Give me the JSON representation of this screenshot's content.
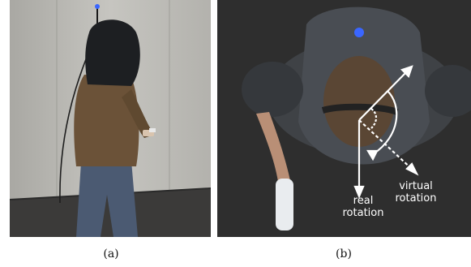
{
  "captions": {
    "a": "(a)",
    "b": "(b)"
  },
  "annotations": {
    "real": [
      "real",
      "rotation"
    ],
    "virtual": [
      "virtual",
      "rotation"
    ]
  },
  "colors": {
    "wall": "#b9b8b3",
    "floor_dark": "#3b3a39",
    "carpet": "#2e2e2e",
    "sweater": "#6b5238",
    "jeans": "#4b5a72",
    "hood": "#1d1f22",
    "led": "#3a66ff"
  }
}
